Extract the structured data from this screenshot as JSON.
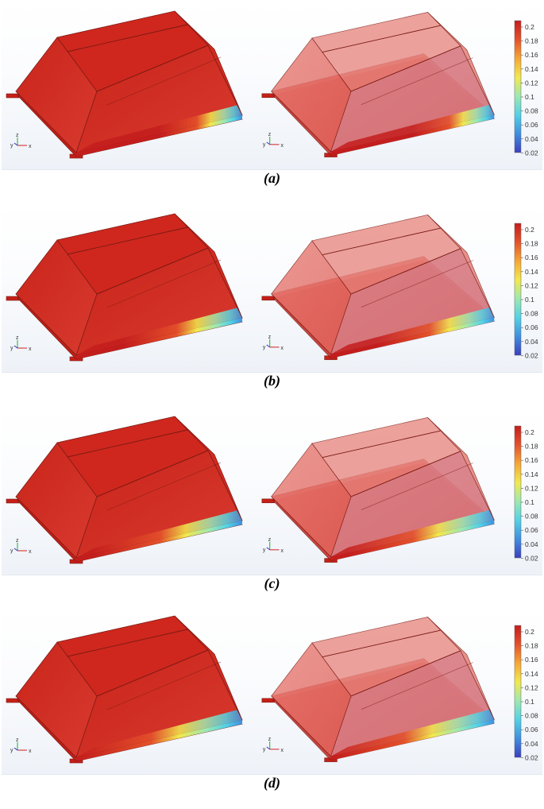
{
  "panels": [
    {
      "caption": "(a)",
      "cold_extent": 0.5
    },
    {
      "caption": "(b)",
      "cold_extent": 0.72
    },
    {
      "caption": "(c)",
      "cold_extent": 0.9
    },
    {
      "caption": "(d)",
      "cold_extent": 1.05
    }
  ],
  "colorbar": {
    "ticks": [
      "0.2",
      "0.18",
      "0.16",
      "0.14",
      "0.12",
      "0.1",
      "0.08",
      "0.06",
      "0.04",
      "0.02"
    ],
    "colormap": [
      "#3b3fc0",
      "#3f8fe0",
      "#52d2e6",
      "#9ee8b0",
      "#f2e94c",
      "#f6a635",
      "#e4512a",
      "#c41d1d"
    ]
  },
  "triad": {
    "x": "x",
    "y": "y",
    "z": "z"
  },
  "colors": {
    "solid": "#d5291f",
    "edge": "#7a1a14",
    "glass": "#e7675e"
  }
}
